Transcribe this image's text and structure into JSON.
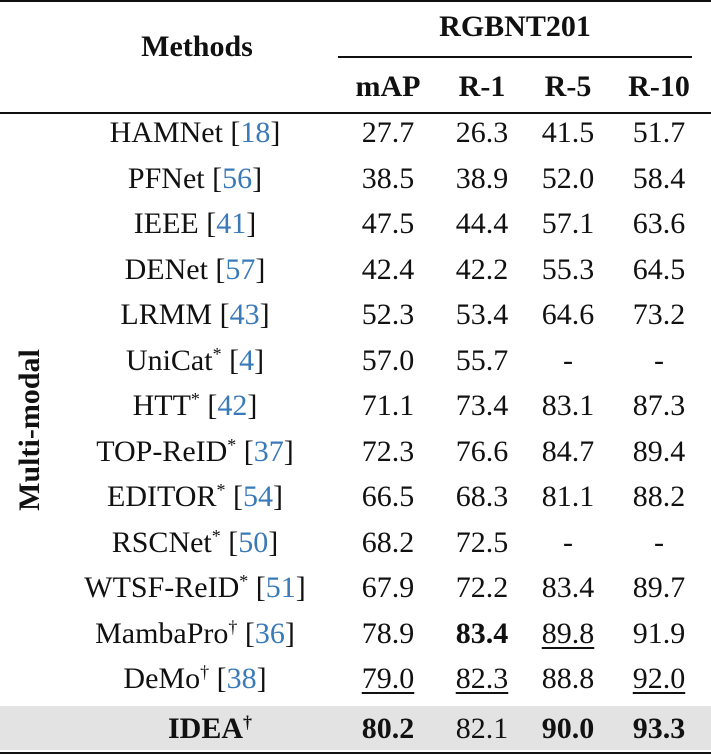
{
  "header": {
    "methods": "Methods",
    "dataset": "RGBNT201",
    "cols": [
      "mAP",
      "R-1",
      "R-5",
      "R-10"
    ]
  },
  "group_label": "Multi-modal",
  "rows": [
    {
      "name": "HAMNet ",
      "mark": "",
      "ref": "18",
      "vals": [
        "27.7",
        "26.3",
        "41.5",
        "51.7"
      ]
    },
    {
      "name": "PFNet ",
      "mark": "",
      "ref": "56",
      "vals": [
        "38.5",
        "38.9",
        "52.0",
        "58.4"
      ]
    },
    {
      "name": "IEEE ",
      "mark": "",
      "ref": "41",
      "vals": [
        "47.5",
        "44.4",
        "57.1",
        "63.6"
      ]
    },
    {
      "name": "DENet ",
      "mark": "",
      "ref": "57",
      "vals": [
        "42.4",
        "42.2",
        "55.3",
        "64.5"
      ]
    },
    {
      "name": "LRMM ",
      "mark": "",
      "ref": "43",
      "vals": [
        "52.3",
        "53.4",
        "64.6",
        "73.2"
      ]
    },
    {
      "name": "UniCat",
      "mark": "*",
      "ref": "4",
      "vals": [
        "57.0",
        "55.7",
        "-",
        "-"
      ]
    },
    {
      "name": "HTT",
      "mark": "*",
      "ref": "42",
      "vals": [
        "71.1",
        "73.4",
        "83.1",
        "87.3"
      ]
    },
    {
      "name": "TOP-ReID",
      "mark": "*",
      "ref": "37",
      "vals": [
        "72.3",
        "76.6",
        "84.7",
        "89.4"
      ]
    },
    {
      "name": "EDITOR",
      "mark": "*",
      "ref": "54",
      "vals": [
        "66.5",
        "68.3",
        "81.1",
        "88.2"
      ]
    },
    {
      "name": "RSCNet",
      "mark": "*",
      "ref": "50",
      "vals": [
        "68.2",
        "72.5",
        "-",
        "-"
      ]
    },
    {
      "name": "WTSF-ReID",
      "mark": "*",
      "ref": "51",
      "vals": [
        "67.9",
        "72.2",
        "83.4",
        "89.7"
      ]
    },
    {
      "name": "MambaPro",
      "mark": "†",
      "ref": "36",
      "vals": [
        "78.9",
        "83.4",
        "89.8",
        "91.9"
      ]
    },
    {
      "name": "DeMo",
      "mark": "†",
      "ref": "38",
      "vals": [
        "79.0",
        "82.3",
        "88.8",
        "92.0"
      ]
    }
  ],
  "final_row": {
    "name": "IDEA",
    "mark": "†",
    "vals": [
      "80.2",
      "82.1",
      "90.0",
      "93.3"
    ]
  }
}
